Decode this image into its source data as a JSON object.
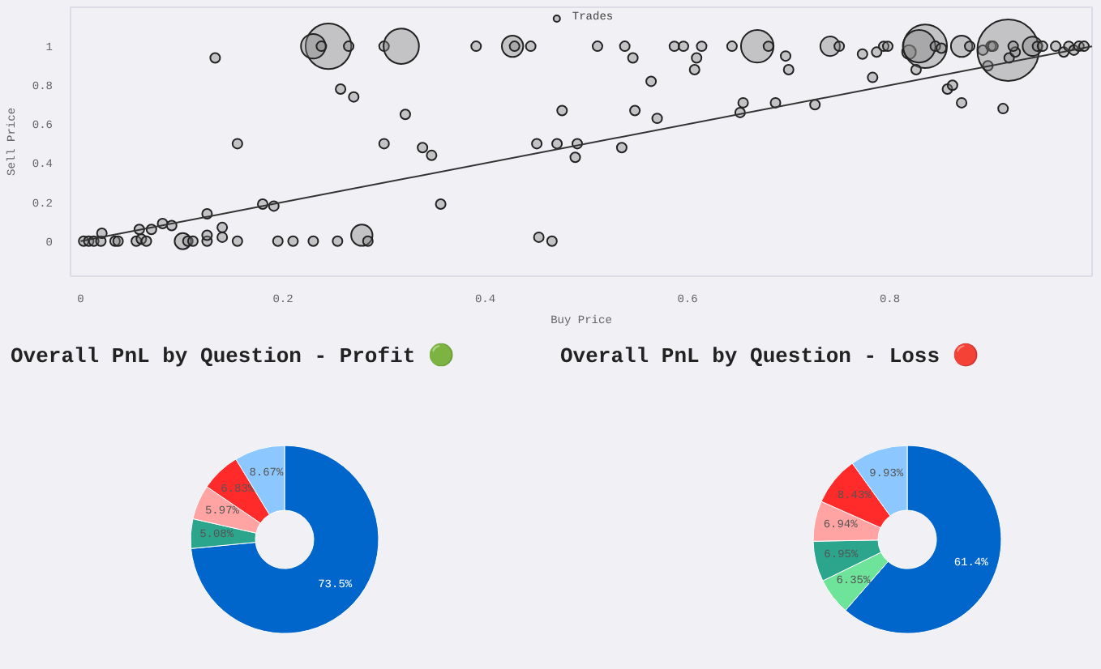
{
  "chart_data": [
    {
      "type": "bubble",
      "xlabel": "Buy Price",
      "ylabel": "Sell Price",
      "xlim": [
        -0.01,
        1.0
      ],
      "ylim": [
        -0.18,
        1.2
      ],
      "xticks": [
        0,
        0.2,
        0.4,
        0.6,
        0.8
      ],
      "yticks": [
        0,
        0.2,
        0.4,
        0.6,
        0.8,
        1
      ],
      "grid": false,
      "legend": "top",
      "series": [
        {
          "name": "Trades",
          "color": "#808080",
          "marker": "circle",
          "x": [
            0.003,
            0.008,
            0.013,
            0.02,
            0.021,
            0.034,
            0.037,
            0.055,
            0.06,
            0.065,
            0.058,
            0.07,
            0.081,
            0.09,
            0.101,
            0.106,
            0.111,
            0.125,
            0.125,
            0.125,
            0.14,
            0.14,
            0.155,
            0.18,
            0.191,
            0.195,
            0.21,
            0.23,
            0.254,
            0.278,
            0.284,
            0.133,
            0.155,
            0.245,
            0.23,
            0.238,
            0.265,
            0.3,
            0.317,
            0.257,
            0.27,
            0.321,
            0.3,
            0.338,
            0.347,
            0.356,
            0.391,
            0.427,
            0.429,
            0.445,
            0.451,
            0.471,
            0.476,
            0.453,
            0.466,
            0.489,
            0.491,
            0.535,
            0.511,
            0.538,
            0.546,
            0.548,
            0.564,
            0.57,
            0.587,
            0.596,
            0.609,
            0.614,
            0.607,
            0.644,
            0.669,
            0.68,
            0.697,
            0.7,
            0.655,
            0.652,
            0.687,
            0.726,
            0.741,
            0.75,
            0.773,
            0.783,
            0.787,
            0.794,
            0.798,
            0.819,
            0.835,
            0.829,
            0.826,
            0.845,
            0.851,
            0.857,
            0.862,
            0.871,
            0.871,
            0.879,
            0.892,
            0.9,
            0.902,
            0.897,
            0.917,
            0.912,
            0.918,
            0.924,
            0.922,
            0.941,
            0.946,
            0.951,
            0.964,
            0.972,
            0.977,
            0.982,
            0.987,
            0.992
          ],
          "values": [
            0,
            0,
            0,
            0,
            0.04,
            0,
            0,
            0,
            0.01,
            0,
            0.06,
            0.06,
            0.09,
            0.08,
            0,
            0,
            0,
            0,
            0.03,
            0.14,
            0.07,
            0.02,
            0,
            0.19,
            0.18,
            0,
            0,
            0,
            0,
            0.03,
            0,
            0.94,
            0.5,
            1,
            1,
            1,
            1,
            1,
            1,
            0.78,
            0.74,
            0.65,
            0.5,
            0.48,
            0.44,
            0.19,
            1,
            1,
            1,
            1,
            0.5,
            0.5,
            0.67,
            0.02,
            0,
            0.43,
            0.5,
            0.48,
            1,
            1,
            0.94,
            0.67,
            0.82,
            0.63,
            1,
            1,
            0.94,
            1,
            0.88,
            1,
            1,
            1,
            0.95,
            0.88,
            0.71,
            0.66,
            0.71,
            0.7,
            1,
            1,
            0.96,
            0.84,
            0.97,
            1,
            1,
            0.97,
            1,
            1,
            0.88,
            1,
            0.99,
            0.78,
            0.8,
            0.71,
            1,
            1,
            0.98,
            1,
            1,
            0.9,
            0.98,
            0.68,
            0.94,
            0.97,
            1,
            1,
            1,
            1,
            1,
            0.97,
            1,
            0.98,
            1,
            1
          ],
          "sizes": [
            0.025,
            0.025,
            0.025,
            0.025,
            0.025,
            0.025,
            0.025,
            0.025,
            0.025,
            0.025,
            0.025,
            0.025,
            0.025,
            0.025,
            0.07,
            0.025,
            0.025,
            0.025,
            0.025,
            0.025,
            0.025,
            0.025,
            0.025,
            0.025,
            0.025,
            0.025,
            0.025,
            0.025,
            0.025,
            0.12,
            0.025,
            0.025,
            0.025,
            0.55,
            0.16,
            0.025,
            0.025,
            0.025,
            0.33,
            0.025,
            0.025,
            0.025,
            0.025,
            0.025,
            0.025,
            0.025,
            0.025,
            0.12,
            0.025,
            0.025,
            0.025,
            0.025,
            0.025,
            0.025,
            0.025,
            0.025,
            0.025,
            0.025,
            0.025,
            0.025,
            0.025,
            0.025,
            0.025,
            0.025,
            0.025,
            0.025,
            0.025,
            0.025,
            0.025,
            0.025,
            0.28,
            0.025,
            0.025,
            0.025,
            0.025,
            0.025,
            0.025,
            0.025,
            0.1,
            0.025,
            0.025,
            0.025,
            0.025,
            0.025,
            0.025,
            0.05,
            0.5,
            0.28,
            0.025,
            0.025,
            0.025,
            0.025,
            0.025,
            0.025,
            0.12,
            0.025,
            0.025,
            0.025,
            0.025,
            0.025,
            1,
            0.025,
            0.025,
            0.025,
            0.025,
            0.1,
            0.025,
            0.025,
            0.025,
            0.025,
            0.025,
            0.025,
            0.025,
            0.025
          ]
        },
        {
          "type": "line",
          "color": "#333333",
          "x": [
            0,
            1
          ],
          "values": [
            0,
            1
          ]
        }
      ]
    },
    {
      "type": "donut",
      "title": "Overall PnL by Question - Profit 🟢",
      "categories": [
        null,
        null,
        null,
        null,
        null
      ],
      "values": [
        73.5,
        5.08,
        5.97,
        6.83,
        8.67
      ],
      "value_labels": [
        "73.5%",
        "5.08%",
        "5.97%",
        "6.83%",
        "8.67%"
      ],
      "colors": [
        "#0066cc",
        "#2ca58d",
        "#ffa3a3",
        "#ff2a2a",
        "#8cc8ff"
      ]
    },
    {
      "type": "donut",
      "title": "Overall PnL by Question - Loss 🔴",
      "categories": [
        null,
        null,
        null,
        null,
        null,
        null
      ],
      "values": [
        61.4,
        6.35,
        6.95,
        6.94,
        8.43,
        9.93
      ],
      "value_labels": [
        "61.4%",
        "6.35%",
        "6.95%",
        "6.94%",
        "8.43%",
        "9.93%"
      ],
      "colors": [
        "#0066cc",
        "#6ee39a",
        "#2ca58d",
        "#ffa3a3",
        "#ff2a2a",
        "#8cc8ff"
      ]
    }
  ]
}
